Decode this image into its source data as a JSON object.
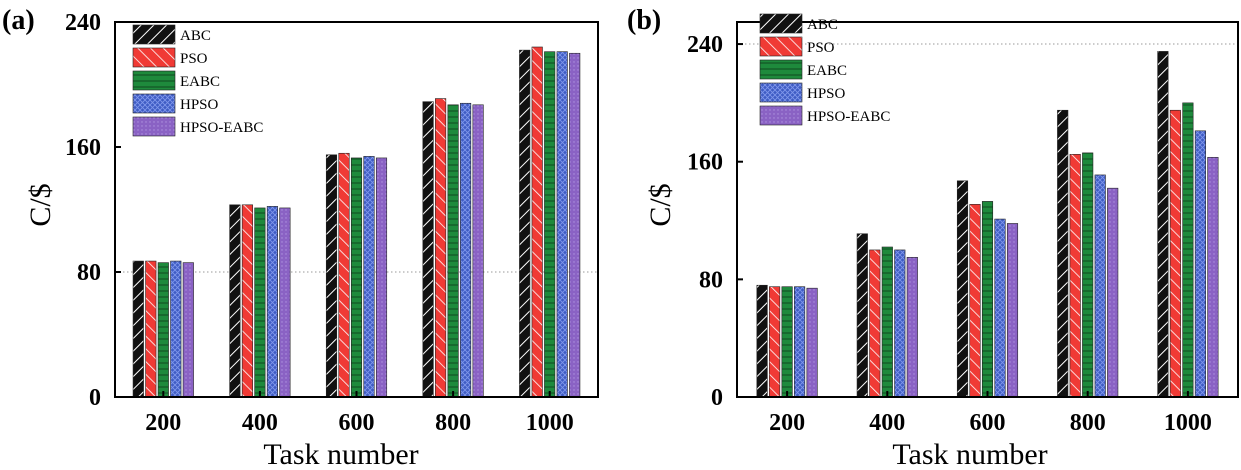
{
  "colors": {
    "ABC": "#111111",
    "PSO": "#f03a35",
    "EABC": "#1e8a3c",
    "HPSO": "#3f5cc4",
    "HPSO-EABC": "#8a62c4"
  },
  "chart_data": [
    {
      "type": "bar",
      "panel_label": "(a)",
      "title": "",
      "xlabel": "Task number",
      "ylabel": "C/$",
      "ylim": [
        0,
        240
      ],
      "yticks": [
        "0",
        "80",
        "160",
        "240"
      ],
      "categories": [
        "200",
        "400",
        "600",
        "800",
        "1000"
      ],
      "series": [
        {
          "name": "ABC",
          "values": [
            87,
            123,
            155,
            189,
            222
          ]
        },
        {
          "name": "PSO",
          "values": [
            87,
            123,
            156,
            191,
            224
          ]
        },
        {
          "name": "EABC",
          "values": [
            86,
            121,
            153,
            187,
            221
          ]
        },
        {
          "name": "HPSO",
          "values": [
            87,
            122,
            154,
            188,
            221
          ]
        },
        {
          "name": "HPSO-EABC",
          "values": [
            86,
            121,
            153,
            187,
            220
          ]
        }
      ],
      "legend": "top-left",
      "gridline": 80
    },
    {
      "type": "bar",
      "panel_label": "(b)",
      "title": "",
      "xlabel": "Task number",
      "ylabel": "C/$",
      "ylim": [
        0,
        255
      ],
      "yticks": [
        "0",
        "80",
        "160",
        "240"
      ],
      "categories": [
        "200",
        "400",
        "600",
        "800",
        "1000"
      ],
      "series": [
        {
          "name": "ABC",
          "values": [
            76,
            111,
            147,
            195,
            235
          ]
        },
        {
          "name": "PSO",
          "values": [
            75,
            100,
            131,
            165,
            195
          ]
        },
        {
          "name": "EABC",
          "values": [
            75,
            102,
            133,
            166,
            200
          ]
        },
        {
          "name": "HPSO",
          "values": [
            75,
            100,
            121,
            151,
            181
          ]
        },
        {
          "name": "HPSO-EABC",
          "values": [
            74,
            95,
            118,
            142,
            163
          ]
        }
      ],
      "legend": "top-left",
      "gridline": 240
    }
  ]
}
